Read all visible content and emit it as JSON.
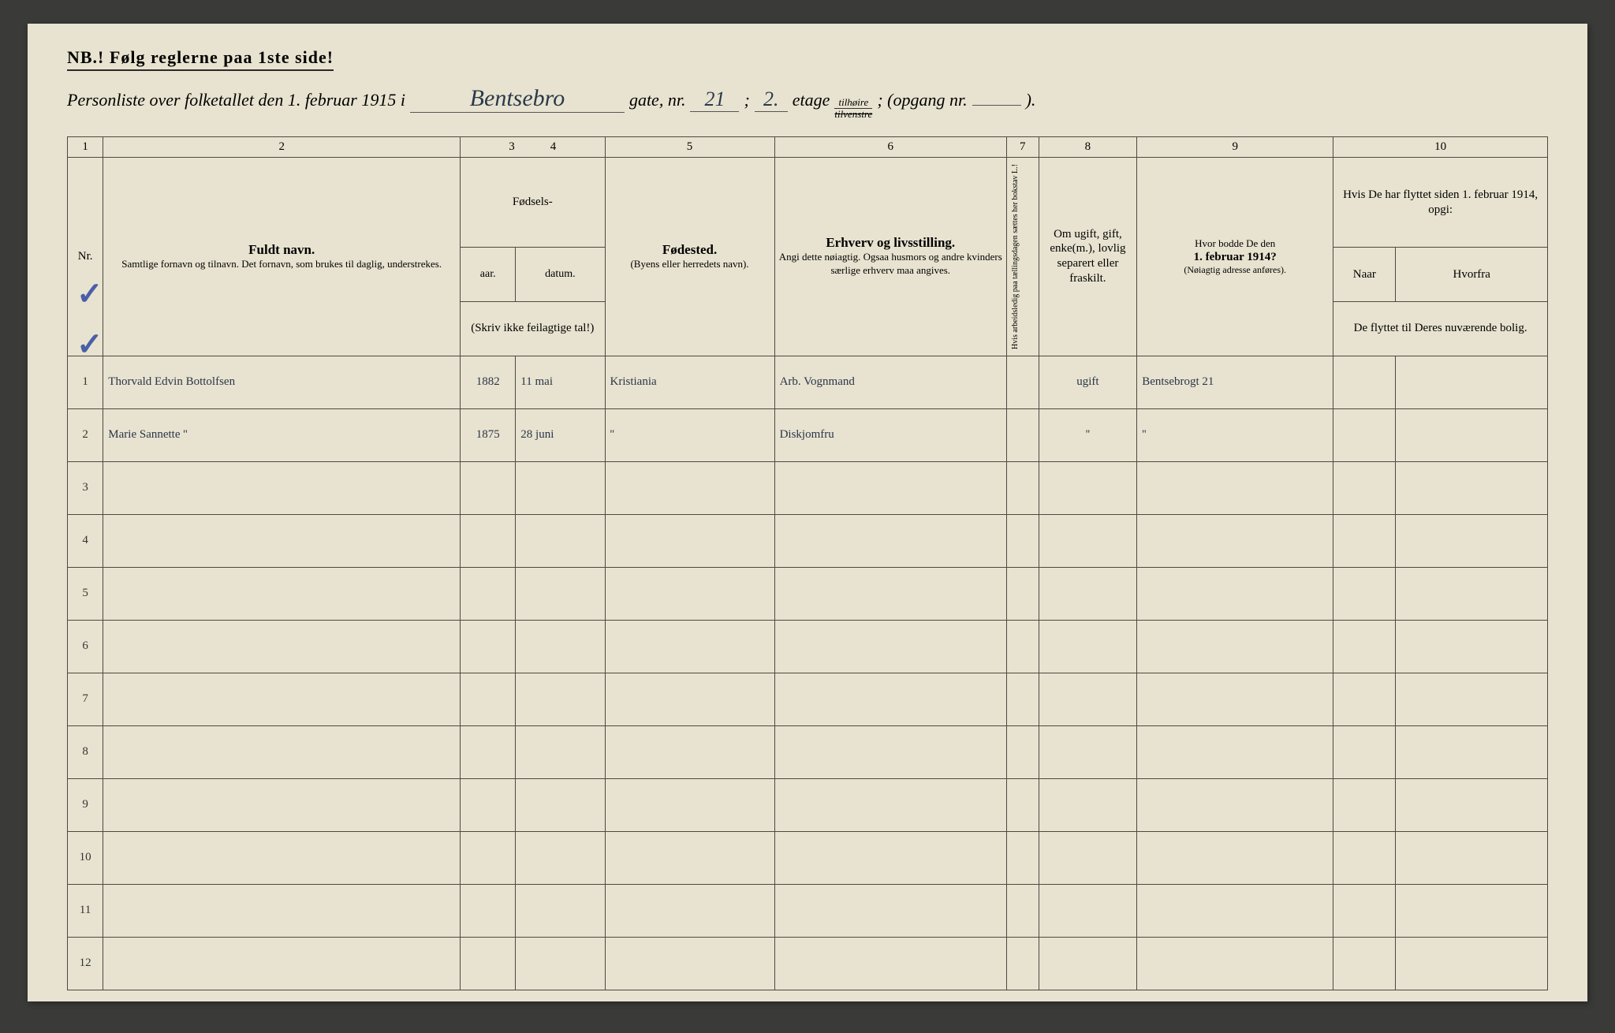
{
  "nb": "NB.!  Følg reglerne paa 1ste side!",
  "header": {
    "prefix": "Personliste over folketallet den 1. februar 1915 i",
    "street": "Bentsebro",
    "gate_nr_label": "gate, nr.",
    "gate_nr": "21",
    "semicolon": ";",
    "etage_nr": "2.",
    "etage_label": "etage",
    "side_top": "tilhøire",
    "side_bot": "tilvenstre",
    "opgang_label": "; (opgang nr.",
    "opgang_nr": "",
    "close": ")."
  },
  "colnums": [
    "1",
    "2",
    "3",
    "4",
    "5",
    "6",
    "7",
    "8",
    "9",
    "10"
  ],
  "headers": {
    "nr": "Nr.",
    "fuldt_title": "Fuldt navn.",
    "fuldt_sub": "Samtlige fornavn og tilnavn.  Det fornavn, som brukes til daglig, understrekes.",
    "fodsels": "Fødsels-",
    "aar": "aar.",
    "datum": "datum.",
    "fodsels_note": "(Skriv ikke feilagtige tal!)",
    "fodested_title": "Fødested.",
    "fodested_sub": "(Byens eller herredets navn).",
    "erhverv_title": "Erhverv og livsstilling.",
    "erhverv_sub": "Angi dette nøiagtig. Ogsaa husmors og andre kvinders særlige erhverv maa angives.",
    "col7": "Hvis arbeidsledig paa tællingsdagen sættes her bokstav L.!",
    "col8": "Om ugift, gift, enke(m.), lovlig separert eller fraskilt.",
    "col9_a": "Hvor bodde De den",
    "col9_b": "1. februar 1914?",
    "col9_c": "(Nøiagtig adresse anføres).",
    "col10_top": "Hvis De har flyttet siden 1. februar 1914, opgi:",
    "col10_naar": "Naar",
    "col10_hvorfra": "Hvorfra",
    "col10_bot": "De flyttet til Deres nuværende bolig."
  },
  "rows": [
    {
      "nr": "1",
      "name": "Thorvald Edvin Bottolfsen",
      "v": "v",
      "aar": "1882",
      "datum": "11 mai",
      "fodested": "Kristiania",
      "erhverv": "Arb. Vognmand",
      "col7": "",
      "col8": "ugift",
      "col9": "Bentsebrogt 21",
      "naar": "",
      "hvorfra": ""
    },
    {
      "nr": "2",
      "name": "Marie Sannette     ''",
      "aar": "1875",
      "datum": "28 juni",
      "fodested": "''",
      "erhverv": "Diskjomfru",
      "col7": "",
      "col8": "''",
      "col9": "''",
      "naar": "",
      "hvorfra": ""
    },
    {
      "nr": "3"
    },
    {
      "nr": "4"
    },
    {
      "nr": "5"
    },
    {
      "nr": "6"
    },
    {
      "nr": "7"
    },
    {
      "nr": "8"
    },
    {
      "nr": "9"
    },
    {
      "nr": "10"
    },
    {
      "nr": "11"
    },
    {
      "nr": "12"
    }
  ],
  "style": {
    "paper_bg": "#e8e3d0",
    "ink": "#2a2a2a",
    "handwriting": "#2a3548",
    "check_color": "#4a5fa8",
    "border": "#4a4a42"
  }
}
